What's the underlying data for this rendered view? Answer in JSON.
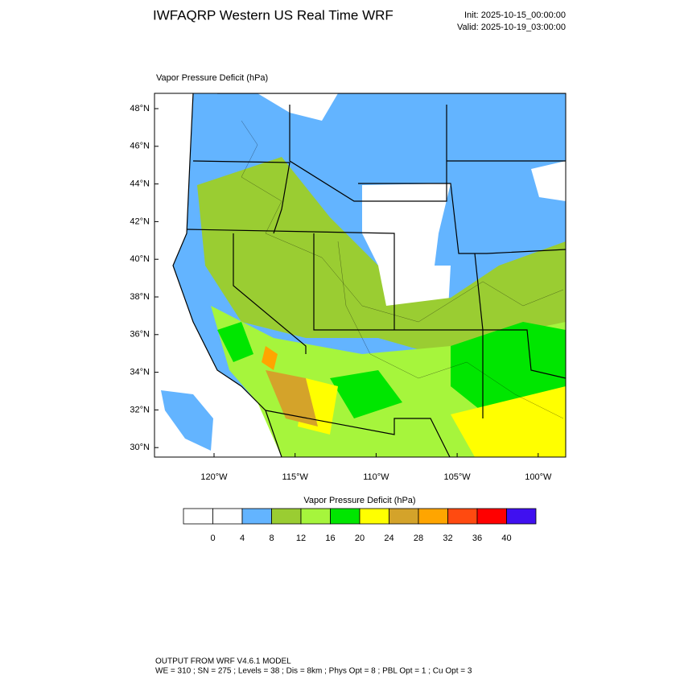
{
  "header": {
    "title": "IWFAQRP Western US Real Time WRF",
    "init": "Init: 2025-10-15_00:00:00",
    "valid": "Valid: 2025-10-19_03:00:00"
  },
  "map": {
    "label": "Vapor Pressure Deficit   (hPa)",
    "lat_labels": [
      "48°N",
      "46°N",
      "44°N",
      "42°N",
      "40°N",
      "38°N",
      "36°N",
      "34°N",
      "32°N",
      "30°N"
    ],
    "lon_labels": [
      "120°W",
      "115°W",
      "110°W",
      "105°W",
      "100°W"
    ]
  },
  "colorbar": {
    "title": "Vapor Pressure Deficit  (hPa)",
    "colors": [
      "#ffffff",
      "#ffffff",
      "#63b4ff",
      "#9acd32",
      "#a6f53c",
      "#00e600",
      "#ffff00",
      "#d4a32a",
      "#ffa500",
      "#ff4a10",
      "#ff0000",
      "#4010f0"
    ],
    "levels": [
      0,
      4,
      8,
      12,
      16,
      20,
      24,
      28,
      32,
      36,
      40
    ]
  },
  "footer": {
    "line1": "OUTPUT FROM WRF V4.6.1 MODEL",
    "line2": "WE = 310 ; SN = 275 ; Levels = 38 ; Dis = 8km ; Phys Opt = 8 ; PBL Opt = 1 ; Cu Opt = 3"
  }
}
